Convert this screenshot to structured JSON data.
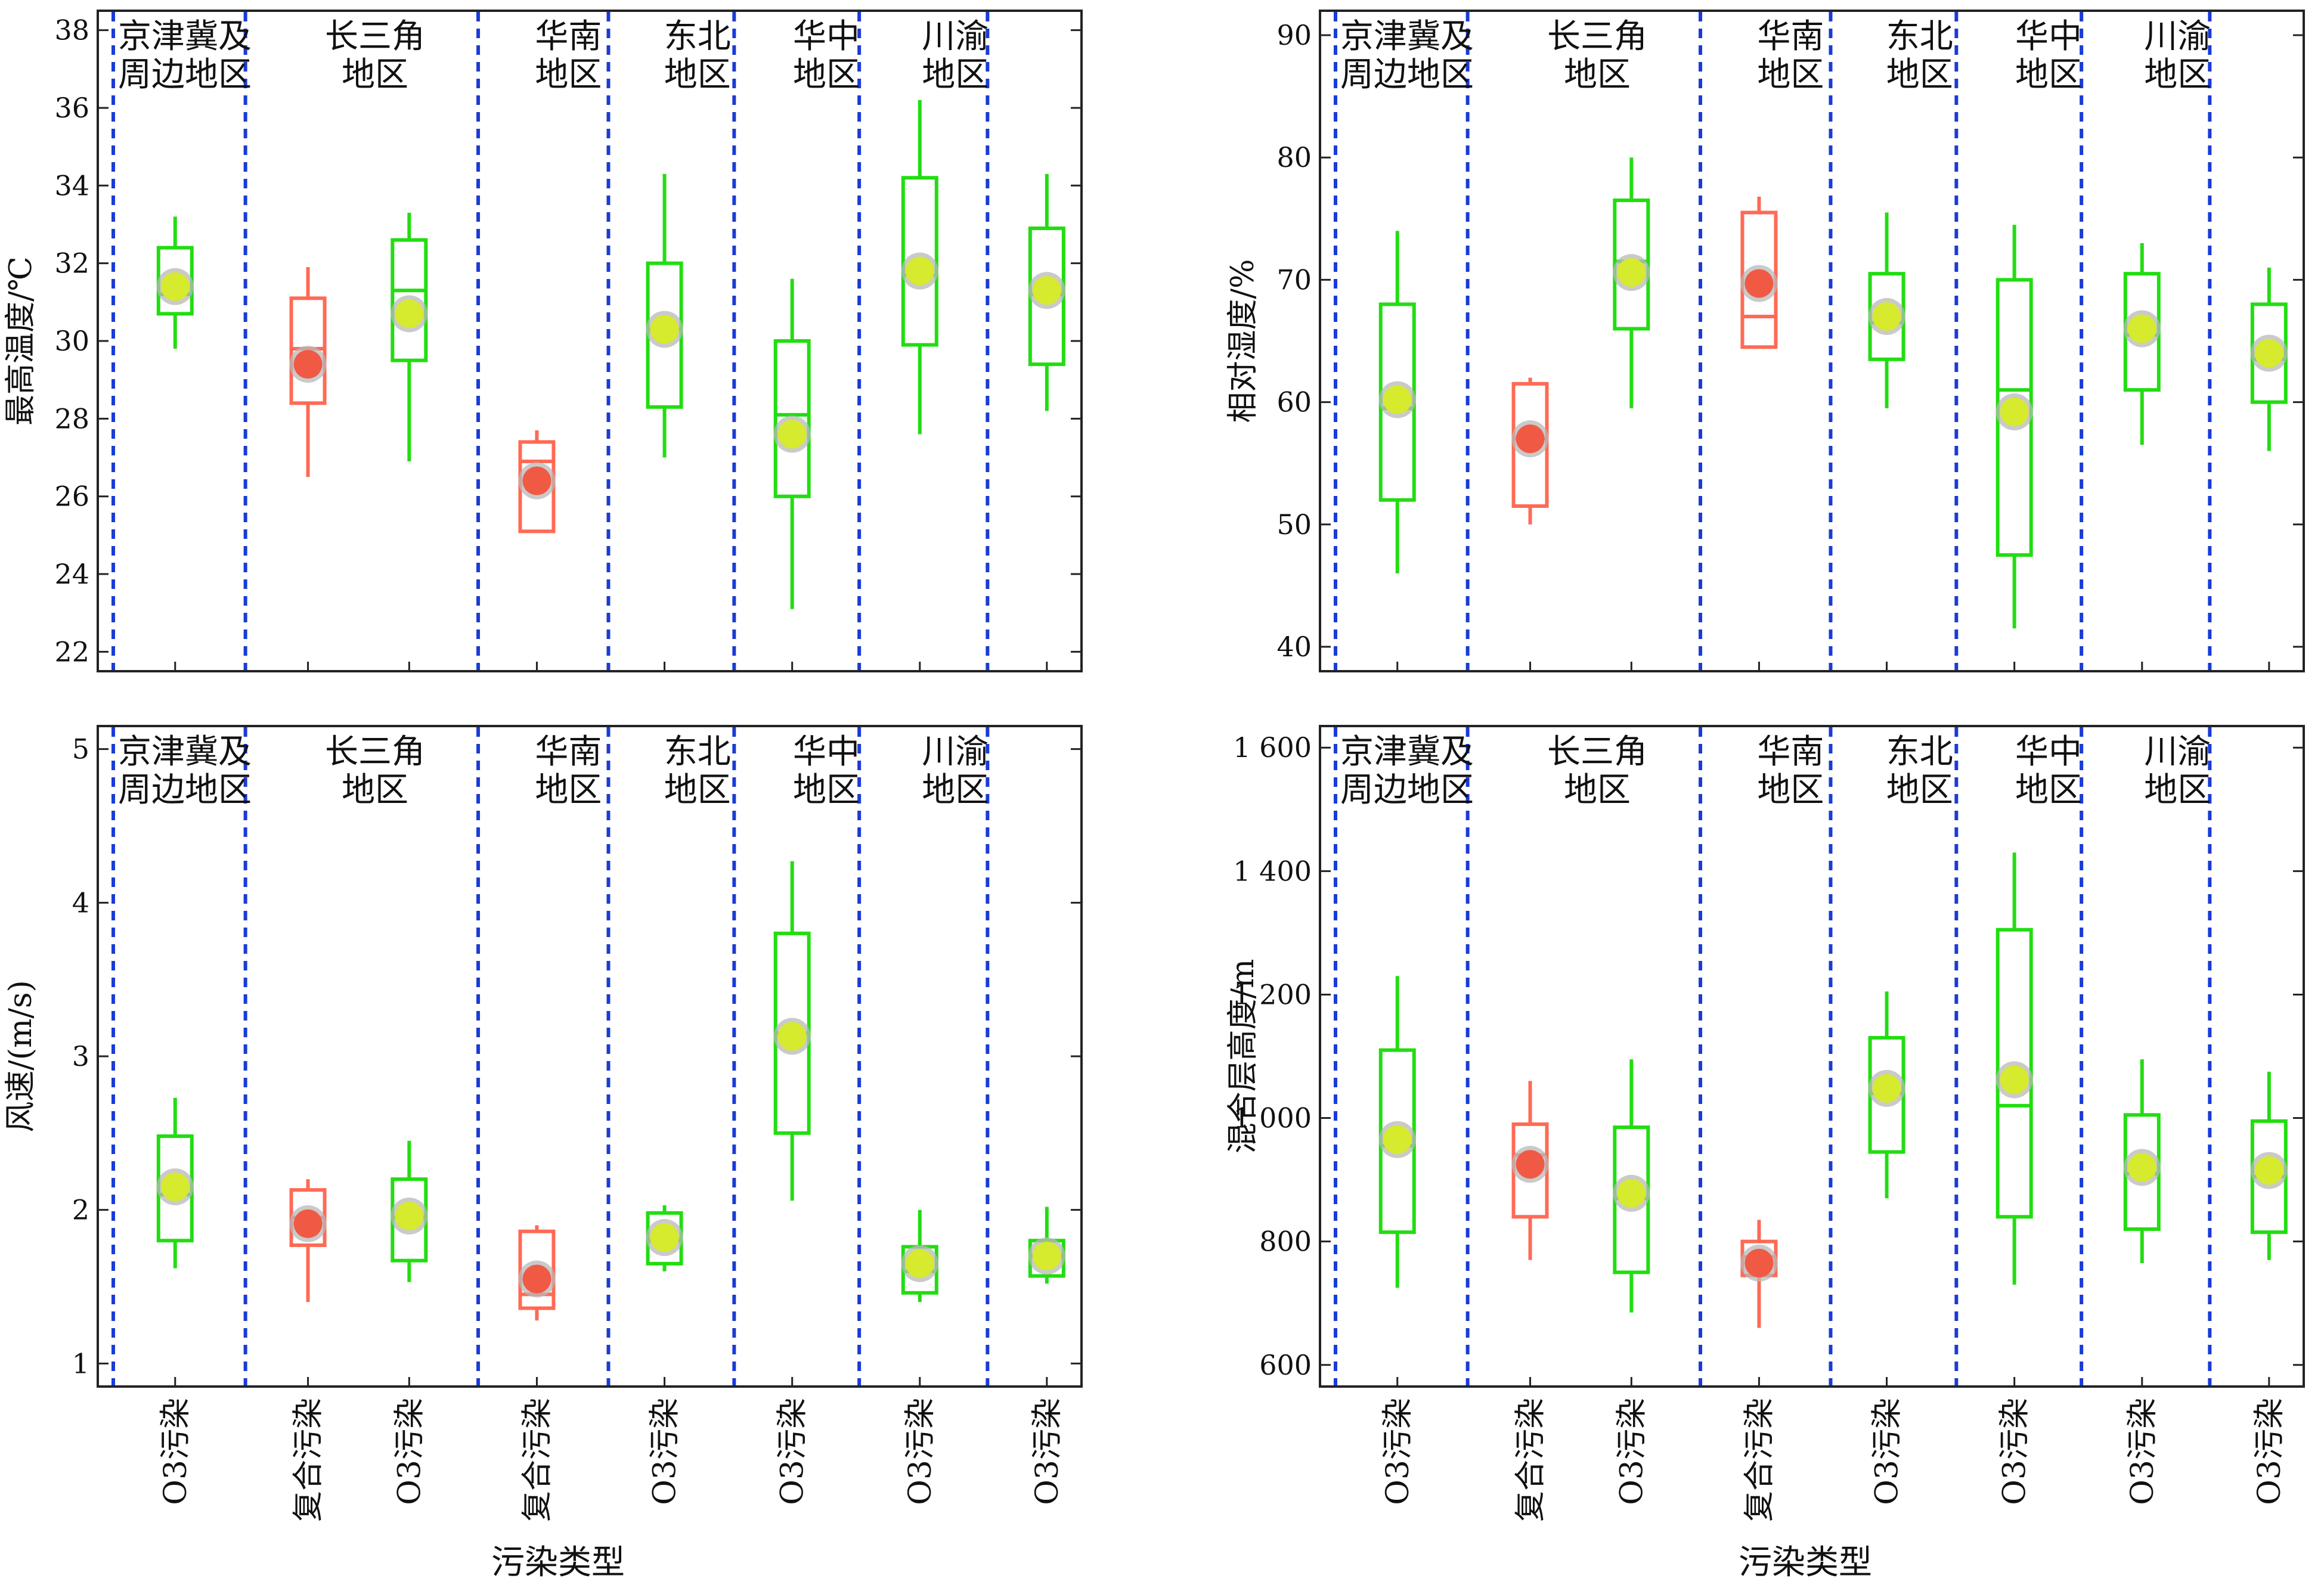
{
  "figure": {
    "categories": [
      "O3污染",
      "复合污染",
      "O3污染",
      "复合污染",
      "O3污染",
      "O3污染",
      "O3污染",
      "O3污染"
    ],
    "xlabel": "污染类型",
    "colors": {
      "o3": "#22dd11",
      "composite": "#ff6a55",
      "divider": "#1a3bd6",
      "mean_o3": "#d6ea2e",
      "mean_composite": "#f05a45",
      "mean_halo": "#b8b8b8"
    }
  },
  "chart_data": [
    {
      "type": "box",
      "ylabel": "最高温度/℃",
      "ylim": [
        21.5,
        38.5
      ],
      "yticks": [
        22,
        24,
        26,
        28,
        30,
        32,
        34,
        36,
        38
      ],
      "ytick_labels": [
        "22",
        "24",
        "26",
        "28",
        "30",
        "32",
        "34",
        "36",
        "38"
      ],
      "regions": [
        {
          "lines": [
            "京津冀及",
            "周边地区"
          ]
        },
        {
          "lines": [
            "长三角",
            "地区"
          ]
        },
        {
          "lines": [
            "华南",
            "地区"
          ]
        },
        {
          "lines": [
            "东北",
            "地区"
          ]
        },
        {
          "lines": [
            "华中",
            "地区"
          ]
        },
        {
          "lines": [
            "川渝",
            "地区"
          ]
        }
      ],
      "boxes": [
        {
          "category": "O3污染",
          "region": "京津冀及周边地区",
          "whisker_low": 29.8,
          "q1": 30.7,
          "median": 31.2,
          "q3": 32.4,
          "whisker_high": 33.2,
          "mean": 31.4
        },
        {
          "category": "复合污染",
          "region": "京津冀及周边地区",
          "whisker_low": 26.5,
          "q1": 28.4,
          "median": 29.8,
          "q3": 31.1,
          "whisker_high": 31.9,
          "mean": 29.4
        },
        {
          "category": "O3污染",
          "region": "长三角地区",
          "whisker_low": 26.9,
          "q1": 29.5,
          "median": 31.3,
          "q3": 32.6,
          "whisker_high": 33.3,
          "mean": 30.7
        },
        {
          "category": "复合污染",
          "region": "长三角地区",
          "whisker_low": 25.1,
          "q1": 25.1,
          "median": 26.9,
          "q3": 27.4,
          "whisker_high": 27.7,
          "mean": 26.4
        },
        {
          "category": "O3污染",
          "region": "华南地区",
          "whisker_low": 27.0,
          "q1": 28.3,
          "median": 30.3,
          "q3": 32.0,
          "whisker_high": 34.3,
          "mean": 30.3
        },
        {
          "category": "O3污染",
          "region": "东北地区",
          "whisker_low": 23.1,
          "q1": 26.0,
          "median": 28.1,
          "q3": 30.0,
          "whisker_high": 31.6,
          "mean": 27.6
        },
        {
          "category": "O3污染",
          "region": "华中地区",
          "whisker_low": 27.6,
          "q1": 29.9,
          "median": 31.7,
          "q3": 34.2,
          "whisker_high": 36.2,
          "mean": 31.8
        },
        {
          "category": "O3污染",
          "region": "川渝地区",
          "whisker_low": 28.2,
          "q1": 29.4,
          "median": 31.2,
          "q3": 32.9,
          "whisker_high": 34.3,
          "mean": 31.3
        }
      ]
    },
    {
      "type": "box",
      "ylabel": "相对湿度/%",
      "ylim": [
        38,
        92
      ],
      "yticks": [
        40,
        50,
        60,
        70,
        80,
        90
      ],
      "ytick_labels": [
        "40",
        "50",
        "60",
        "70",
        "80",
        "90"
      ],
      "regions": [
        {
          "lines": [
            "京津冀及",
            "周边地区"
          ]
        },
        {
          "lines": [
            "长三角",
            "地区"
          ]
        },
        {
          "lines": [
            "华南",
            "地区"
          ]
        },
        {
          "lines": [
            "东北",
            "地区"
          ]
        },
        {
          "lines": [
            "华中",
            "地区"
          ]
        },
        {
          "lines": [
            "川渝",
            "地区"
          ]
        }
      ],
      "boxes": [
        {
          "category": "O3污染",
          "region": "京津冀及周边地区",
          "whisker_low": 46.0,
          "q1": 52.0,
          "median": 59.5,
          "q3": 68.0,
          "whisker_high": 74.0,
          "mean": 60.2
        },
        {
          "category": "复合污染",
          "region": "京津冀及周边地区",
          "whisker_low": 50.0,
          "q1": 51.5,
          "median": 57.0,
          "q3": 61.5,
          "whisker_high": 62.0,
          "mean": 57.0
        },
        {
          "category": "O3污染",
          "region": "长三角地区",
          "whisker_low": 59.5,
          "q1": 66.0,
          "median": 71.5,
          "q3": 76.5,
          "whisker_high": 80.0,
          "mean": 70.6
        },
        {
          "category": "复合污染",
          "region": "长三角地区",
          "whisker_low": 64.5,
          "q1": 64.5,
          "median": 67.0,
          "q3": 75.5,
          "whisker_high": 76.8,
          "mean": 69.7
        },
        {
          "category": "O3污染",
          "region": "华南地区",
          "whisker_low": 59.5,
          "q1": 63.5,
          "median": 66.5,
          "q3": 70.5,
          "whisker_high": 75.5,
          "mean": 67.0
        },
        {
          "category": "O3污染",
          "region": "东北地区",
          "whisker_low": 41.5,
          "q1": 47.5,
          "median": 61.0,
          "q3": 70.0,
          "whisker_high": 74.5,
          "mean": 59.2
        },
        {
          "category": "O3污染",
          "region": "华中地区",
          "whisker_low": 56.5,
          "q1": 61.0,
          "median": 65.5,
          "q3": 70.5,
          "whisker_high": 73.0,
          "mean": 66.0
        },
        {
          "category": "O3污染",
          "region": "川渝地区",
          "whisker_low": 56.0,
          "q1": 60.0,
          "median": 63.5,
          "q3": 68.0,
          "whisker_high": 71.0,
          "mean": 64.0
        }
      ]
    },
    {
      "type": "box",
      "ylabel": "风速/(m/s)",
      "ylim": [
        0.85,
        5.15
      ],
      "yticks": [
        1,
        2,
        3,
        4,
        5
      ],
      "ytick_labels": [
        "1",
        "2",
        "3",
        "4",
        "5"
      ],
      "regions": [
        {
          "lines": [
            "京津冀及",
            "周边地区"
          ]
        },
        {
          "lines": [
            "长三角",
            "地区"
          ]
        },
        {
          "lines": [
            "华南",
            "地区"
          ]
        },
        {
          "lines": [
            "东北",
            "地区"
          ]
        },
        {
          "lines": [
            "华中",
            "地区"
          ]
        },
        {
          "lines": [
            "川渝",
            "地区"
          ]
        }
      ],
      "boxes": [
        {
          "category": "O3污染",
          "region": "京津冀及周边地区",
          "whisker_low": 1.62,
          "q1": 1.8,
          "median": 2.1,
          "q3": 2.48,
          "whisker_high": 2.73,
          "mean": 2.15
        },
        {
          "category": "复合污染",
          "region": "京津冀及周边地区",
          "whisker_low": 1.4,
          "q1": 1.77,
          "median": 1.95,
          "q3": 2.13,
          "whisker_high": 2.2,
          "mean": 1.91
        },
        {
          "category": "O3污染",
          "region": "长三角地区",
          "whisker_low": 1.53,
          "q1": 1.67,
          "median": 1.95,
          "q3": 2.2,
          "whisker_high": 2.45,
          "mean": 1.96
        },
        {
          "category": "复合污染",
          "region": "长三角地区",
          "whisker_low": 1.28,
          "q1": 1.36,
          "median": 1.45,
          "q3": 1.86,
          "whisker_high": 1.9,
          "mean": 1.55
        },
        {
          "category": "O3污染",
          "region": "华南地区",
          "whisker_low": 1.6,
          "q1": 1.65,
          "median": 1.8,
          "q3": 1.98,
          "whisker_high": 2.03,
          "mean": 1.82
        },
        {
          "category": "O3污染",
          "region": "东北地区",
          "whisker_low": 2.06,
          "q1": 2.5,
          "median": 3.15,
          "q3": 3.8,
          "whisker_high": 4.27,
          "mean": 3.13
        },
        {
          "category": "O3污染",
          "region": "华中地区",
          "whisker_low": 1.4,
          "q1": 1.46,
          "median": 1.6,
          "q3": 1.76,
          "whisker_high": 2.0,
          "mean": 1.65
        },
        {
          "category": "O3污染",
          "region": "川渝地区",
          "whisker_low": 1.52,
          "q1": 1.57,
          "median": 1.7,
          "q3": 1.8,
          "whisker_high": 2.02,
          "mean": 1.7
        }
      ]
    },
    {
      "type": "box",
      "ylabel": "混合层高度/m",
      "ylim": [
        565,
        1635
      ],
      "yticks": [
        600,
        800,
        1000,
        1200,
        1400,
        1600
      ],
      "ytick_labels": [
        "600",
        "800",
        "1 000",
        "1 200",
        "1 400",
        "1 600"
      ],
      "regions": [
        {
          "lines": [
            "京津冀及",
            "周边地区"
          ]
        },
        {
          "lines": [
            "长三角",
            "地区"
          ]
        },
        {
          "lines": [
            "华南",
            "地区"
          ]
        },
        {
          "lines": [
            "东北",
            "地区"
          ]
        },
        {
          "lines": [
            "华中",
            "地区"
          ]
        },
        {
          "lines": [
            "川渝",
            "地区"
          ]
        }
      ],
      "boxes": [
        {
          "category": "O3污染",
          "region": "京津冀及周边地区",
          "whisker_low": 725,
          "q1": 815,
          "median": 955,
          "q3": 1110,
          "whisker_high": 1230,
          "mean": 965
        },
        {
          "category": "复合污染",
          "region": "京津冀及周边地区",
          "whisker_low": 770,
          "q1": 840,
          "median": 940,
          "q3": 990,
          "whisker_high": 1060,
          "mean": 925
        },
        {
          "category": "O3污染",
          "region": "长三角地区",
          "whisker_low": 685,
          "q1": 750,
          "median": 870,
          "q3": 985,
          "whisker_high": 1095,
          "mean": 878
        },
        {
          "category": "复合污染",
          "region": "长三角地区",
          "whisker_low": 660,
          "q1": 745,
          "median": 775,
          "q3": 800,
          "whisker_high": 835,
          "mean": 765
        },
        {
          "category": "O3污染",
          "region": "华南地区",
          "whisker_low": 870,
          "q1": 945,
          "median": 1040,
          "q3": 1130,
          "whisker_high": 1205,
          "mean": 1048
        },
        {
          "category": "O3污染",
          "region": "东北地区",
          "whisker_low": 730,
          "q1": 840,
          "median": 1020,
          "q3": 1305,
          "whisker_high": 1430,
          "mean": 1062
        },
        {
          "category": "O3污染",
          "region": "华中地区",
          "whisker_low": 765,
          "q1": 820,
          "median": 910,
          "q3": 1005,
          "whisker_high": 1095,
          "mean": 920
        },
        {
          "category": "O3污染",
          "region": "川渝地区",
          "whisker_low": 770,
          "q1": 815,
          "median": 905,
          "q3": 995,
          "whisker_high": 1075,
          "mean": 915
        }
      ]
    }
  ]
}
